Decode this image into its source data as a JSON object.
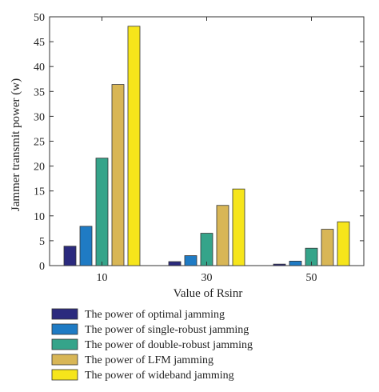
{
  "chart_data": {
    "type": "bar",
    "title": "",
    "xlabel": "Value of Rsinr",
    "ylabel": "Jammer transmit power (w)",
    "categories": [
      "10",
      "30",
      "50"
    ],
    "ylim": [
      0,
      50
    ],
    "yticks": [
      0,
      5,
      10,
      15,
      20,
      25,
      30,
      35,
      40,
      45,
      50
    ],
    "grid": false,
    "legend_position": "bottom",
    "series": [
      {
        "name": "The power of optimal jamming",
        "color": "#2b2a7e",
        "values": [
          3.9,
          0.8,
          0.3
        ]
      },
      {
        "name": "The power of single-robust jamming",
        "color": "#1f7bc4",
        "values": [
          7.9,
          2.0,
          0.9
        ]
      },
      {
        "name": "The power of double-robust jamming",
        "color": "#35a48a",
        "values": [
          21.6,
          6.5,
          3.5
        ]
      },
      {
        "name": "The power of LFM jamming",
        "color": "#d8b656",
        "values": [
          36.4,
          12.1,
          7.3
        ]
      },
      {
        "name": "The power of wideband jamming",
        "color": "#f6e51b",
        "values": [
          48.1,
          15.4,
          8.8
        ]
      }
    ]
  }
}
